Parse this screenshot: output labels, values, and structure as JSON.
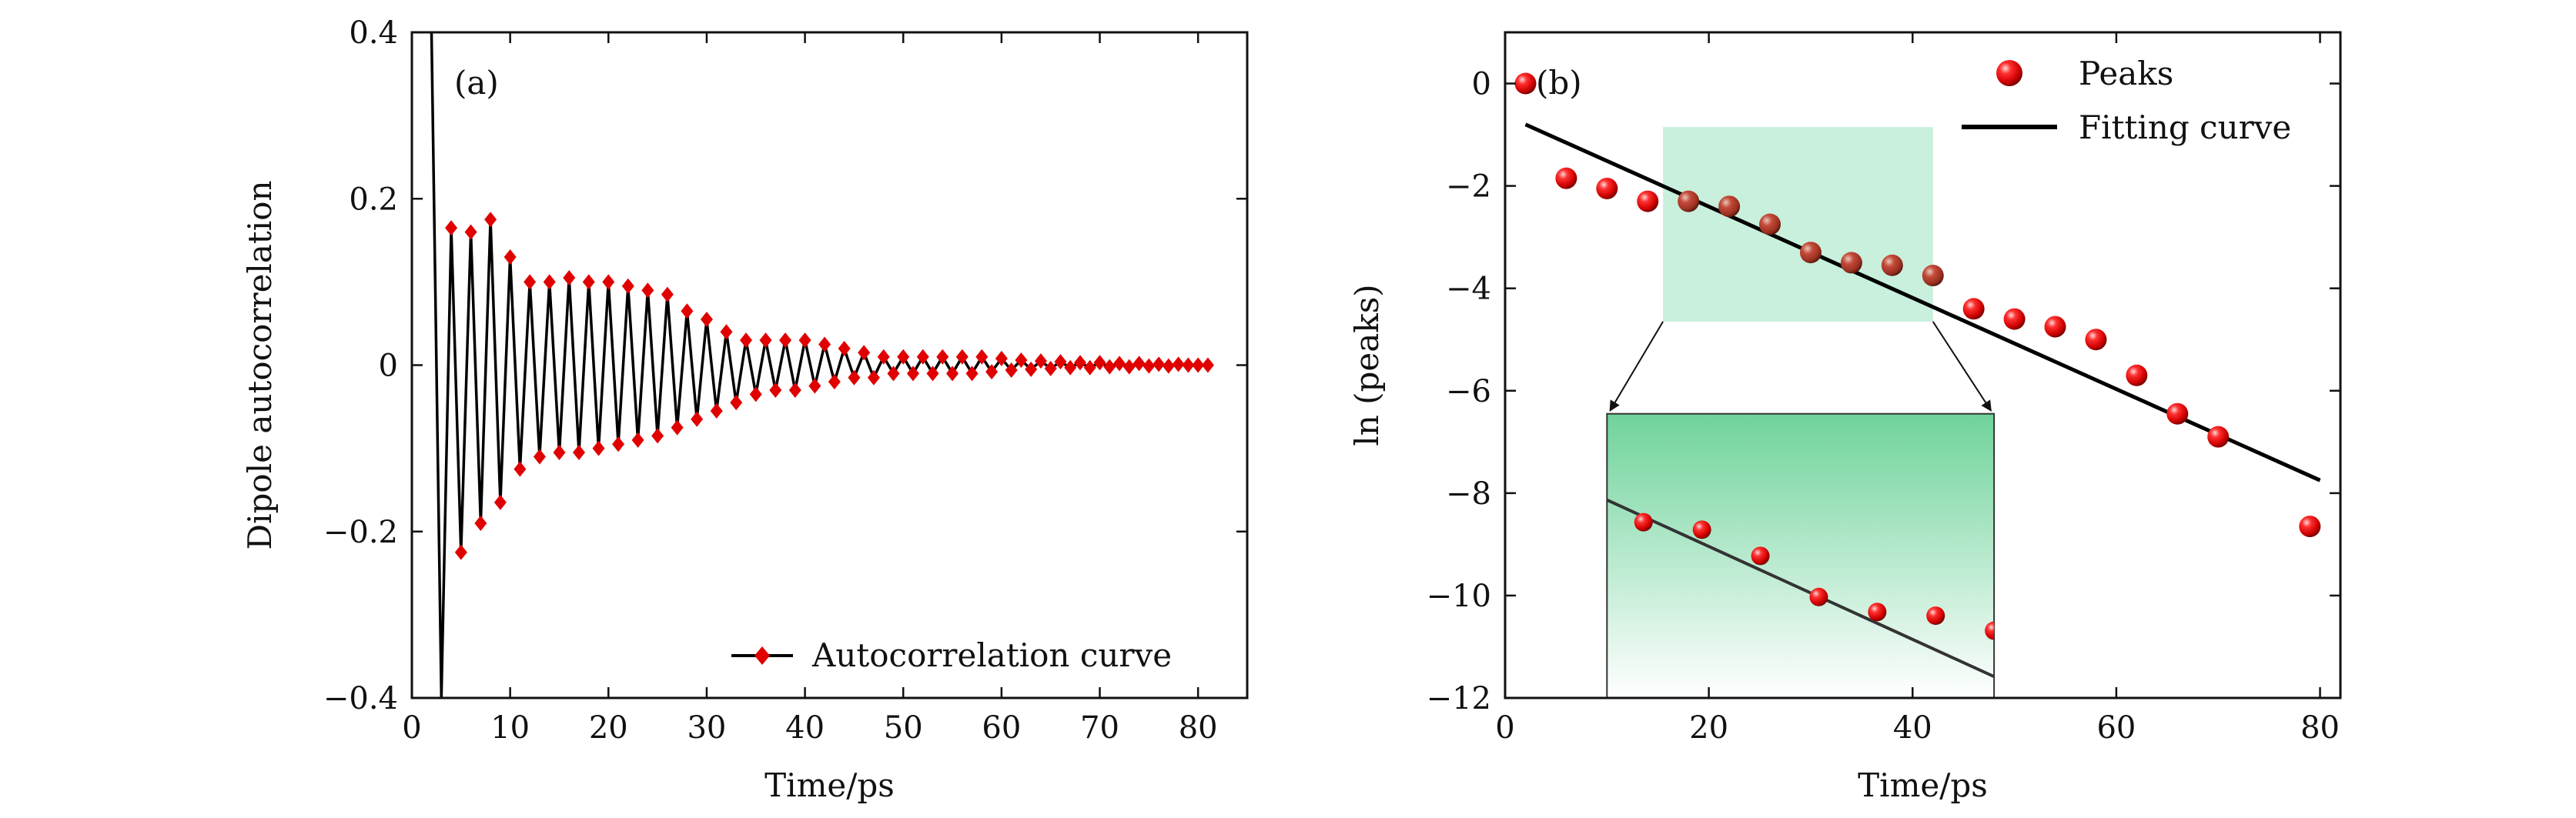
{
  "chart_data": [
    {
      "panel": "(a)",
      "type": "line",
      "xlabel": "Time/ps",
      "ylabel": "Dipole autocorrelation",
      "xlim": [
        0,
        85
      ],
      "ylim": [
        -0.4,
        0.4
      ],
      "xticks": [
        0,
        10,
        20,
        30,
        40,
        50,
        60,
        70,
        80
      ],
      "yticks": [
        -0.4,
        -0.2,
        0,
        0.2,
        0.4
      ],
      "ytick_labels": [
        "−0.4",
        "−0.2",
        "0",
        "0.2",
        "0.4"
      ],
      "legend": {
        "position": "bottom-right",
        "entries": [
          "Autocorrelation curve"
        ]
      },
      "series": [
        {
          "name": "Autocorrelation curve",
          "line_color": "#000000",
          "marker_color": "#e00000",
          "marker": "diamond",
          "x": [
            2.0,
            3.0,
            4.0,
            5.0,
            6.0,
            7.0,
            8.0,
            9.0,
            10.0,
            11.0,
            12.0,
            13.0,
            14.0,
            15.0,
            16.0,
            17.0,
            18.0,
            19.0,
            20.0,
            21.0,
            22.0,
            23.0,
            24.0,
            25.0,
            26.0,
            27.0,
            28.0,
            29.0,
            30.0,
            31.0,
            32.0,
            33.0,
            34.0,
            35.0,
            36.0,
            37.0,
            38.0,
            39.0,
            40.0,
            41.0,
            42.0,
            43.0,
            44.0,
            45.0,
            46.0,
            47.0,
            48.0,
            49.0,
            50.0,
            51.0,
            52.0,
            53.0,
            54.0,
            55.0,
            56.0,
            57.0,
            58.0,
            59.0,
            60.0,
            61.0,
            62.0,
            63.0,
            64.0,
            65.0,
            66.0,
            67.0,
            68.0,
            69.0,
            70.0,
            71.0,
            72.0,
            73.0,
            74.0,
            75.0,
            76.0,
            77.0,
            78.0,
            79.0,
            80.0,
            81.0
          ],
          "y": [
            0.4,
            -0.4,
            0.165,
            -0.225,
            0.16,
            -0.19,
            0.175,
            -0.165,
            0.13,
            -0.125,
            0.1,
            -0.11,
            0.1,
            -0.105,
            0.105,
            -0.105,
            0.1,
            -0.1,
            0.1,
            -0.095,
            0.095,
            -0.09,
            0.09,
            -0.085,
            0.085,
            -0.075,
            0.065,
            -0.065,
            0.055,
            -0.055,
            0.04,
            -0.045,
            0.03,
            -0.035,
            0.03,
            -0.03,
            0.03,
            -0.03,
            0.03,
            -0.025,
            0.025,
            -0.02,
            0.02,
            -0.015,
            0.015,
            -0.015,
            0.01,
            -0.01,
            0.01,
            -0.01,
            0.01,
            -0.01,
            0.01,
            -0.01,
            0.01,
            -0.01,
            0.01,
            -0.008,
            0.008,
            -0.006,
            0.006,
            -0.005,
            0.005,
            -0.004,
            0.004,
            -0.003,
            0.003,
            -0.003,
            0.003,
            -0.002,
            0.002,
            -0.002,
            0.002,
            -0.001,
            0.001,
            -0.001,
            0.001,
            0.0,
            0.0,
            0.0
          ],
          "markers_shown_from_index": 2
        }
      ]
    },
    {
      "panel": "(b)",
      "type": "scatter",
      "xlabel": "Time/ps",
      "ylabel": "ln (peaks)",
      "xlim": [
        0,
        82
      ],
      "ylim": [
        -12,
        1
      ],
      "xticks": [
        0,
        20,
        40,
        60,
        80
      ],
      "yticks": [
        -12,
        -10,
        -8,
        -6,
        -4,
        -2,
        0
      ],
      "ytick_labels": [
        "−12",
        "−10",
        "−8",
        "−6",
        "−4",
        "−2",
        "0"
      ],
      "legend": {
        "position": "top-right",
        "entries": [
          "Peaks",
          "Fitting curve"
        ]
      },
      "series": [
        {
          "name": "Peaks",
          "marker_color": "#e00000",
          "x": [
            2,
            6,
            10,
            14,
            18,
            22,
            26,
            30,
            34,
            38,
            42,
            46,
            50,
            54,
            58,
            62,
            66,
            70,
            79
          ],
          "y": [
            0.0,
            -1.85,
            -2.05,
            -2.3,
            -2.3,
            -2.4,
            -2.75,
            -3.3,
            -3.5,
            -3.55,
            -3.75,
            -4.4,
            -4.6,
            -4.75,
            -5.0,
            -5.7,
            -6.45,
            -6.9,
            -8.65
          ]
        },
        {
          "name": "Fitting curve",
          "line_color": "#000000",
          "x": [
            2,
            80
          ],
          "y": [
            -0.8,
            -7.75
          ]
        }
      ],
      "highlight_region": {
        "x": [
          15.5,
          42
        ],
        "y": [
          -4.65,
          -0.85
        ],
        "color": "#c8f0dc"
      },
      "inset": {
        "source_x": [
          15.5,
          42
        ],
        "source_y": [
          -4.65,
          -0.85
        ],
        "placed_x": [
          10,
          48
        ],
        "placed_y": [
          -12,
          -6.45
        ],
        "gradient_top": "#6fd39b",
        "gradient_bottom": "#ffffff"
      }
    }
  ]
}
